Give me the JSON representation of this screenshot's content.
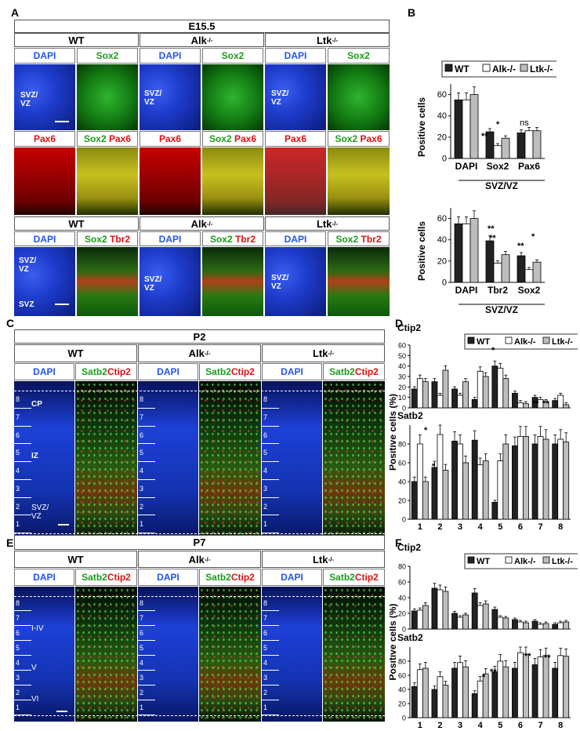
{
  "panel_letters": {
    "a": "A",
    "b": "B",
    "c": "C",
    "d": "D",
    "e": "E",
    "f": "F"
  },
  "panelA": {
    "stage": "E15.5",
    "genotypes": [
      "WT",
      "Alk",
      "Ltk"
    ],
    "ko_sup": "-/-",
    "row1": {
      "left": "DAPI",
      "right": "Sox2"
    },
    "row2": {
      "left": "Pax6",
      "right_a": "Sox2",
      "right_b": "Pax6"
    },
    "row3": {
      "left": "DAPI",
      "right_a": "Sox2",
      "right_b": "Tbr2"
    },
    "zone1": "SVZ/\nVZ",
    "zone_svz": "SVZ"
  },
  "panelC": {
    "stage": "P2",
    "labels": {
      "left": "DAPI",
      "right_a": "Satb2",
      "right_b": "Ctip2"
    },
    "regions": [
      "CP",
      "IZ",
      "SVZ/\nVZ"
    ],
    "bins": [
      "8",
      "7",
      "6",
      "5",
      "4",
      "3",
      "2",
      "1"
    ]
  },
  "panelE": {
    "stage": "P7",
    "regions": [
      "I-IV",
      "V",
      "VI"
    ]
  },
  "colors": {
    "wt": "#222222",
    "alk": "#ffffff",
    "ltk": "#bdbdbd",
    "dapi": "#2255ee",
    "green": "#1c9b1c",
    "red": "#dd1111"
  },
  "chart_data": [
    {
      "id": "B-top",
      "type": "bar",
      "ylabel": "Positive cells",
      "ylim": [
        0,
        70
      ],
      "yticks": [
        0,
        20,
        40,
        60
      ],
      "categories": [
        "DAPI",
        "Sox2",
        "Pax6"
      ],
      "group_label": "SVZ/VZ",
      "legend": [
        "WT",
        "Alk-/-",
        "Ltk-/-"
      ],
      "series": [
        {
          "name": "WT",
          "values": [
            55,
            25,
            24
          ]
        },
        {
          "name": "Alk-/-",
          "values": [
            55,
            12,
            26
          ]
        },
        {
          "name": "Ltk-/-",
          "values": [
            60,
            19,
            26
          ]
        }
      ],
      "annotations": [
        "**",
        "*",
        "ns"
      ]
    },
    {
      "id": "B-bottom",
      "type": "bar",
      "ylabel": "Positive cells",
      "ylim": [
        0,
        70
      ],
      "yticks": [
        0,
        20,
        40,
        60
      ],
      "categories": [
        "DAPI",
        "Tbr2",
        "Sox2"
      ],
      "group_label": "SVZ/VZ",
      "series": [
        {
          "name": "WT",
          "values": [
            55,
            39,
            25
          ]
        },
        {
          "name": "Alk-/-",
          "values": [
            55,
            18,
            12
          ]
        },
        {
          "name": "Ltk-/-",
          "values": [
            60,
            26,
            19
          ]
        }
      ],
      "annotations": [
        "**",
        "**",
        "**",
        "*"
      ]
    },
    {
      "id": "D",
      "type": "bar",
      "title_top": "Ctip2",
      "title_bottom": "Satb2",
      "ylabel": "Positive cells (%)",
      "categories": [
        "1",
        "2",
        "3",
        "4",
        "5",
        "6",
        "7",
        "8"
      ],
      "legend": [
        "WT",
        "Alk-/-",
        "Ltk-/-"
      ],
      "top": {
        "ylim": [
          0,
          60
        ],
        "yticks": [
          0,
          10,
          20,
          30,
          40,
          50,
          60
        ],
        "series": [
          {
            "name": "WT",
            "values": [
              18,
              25,
              18,
              8,
              40,
              14,
              10,
              7
            ]
          },
          {
            "name": "Alk-/-",
            "values": [
              28,
              12,
              12,
              35,
              38,
              5,
              8,
              12
            ]
          },
          {
            "name": "Ltk-/-",
            "values": [
              25,
              36,
              25,
              30,
              28,
              4,
              6,
              3
            ]
          }
        ]
      },
      "bottom": {
        "ylim": [
          0,
          100
        ],
        "yticks": [
          0,
          20,
          40,
          60,
          80
        ],
        "series": [
          {
            "name": "WT",
            "values": [
              40,
              55,
              83,
              84,
              18,
              78,
              80,
              80
            ]
          },
          {
            "name": "Alk-/-",
            "values": [
              80,
              90,
              80,
              58,
              62,
              88,
              88,
              85
            ]
          },
          {
            "name": "Ltk-/-",
            "values": [
              40,
              52,
              60,
              62,
              80,
              88,
              85,
              82
            ]
          }
        ]
      },
      "annotations": [
        "*",
        "**",
        "**",
        "*",
        "*"
      ]
    },
    {
      "id": "F",
      "type": "bar",
      "title_top": "Ctip2",
      "title_bottom": "Satb2",
      "ylabel": "Positive cells (%)",
      "categories": [
        "1",
        "2",
        "3",
        "4",
        "5",
        "6",
        "7",
        "8"
      ],
      "legend": [
        "WT",
        "Alk-/-",
        "Ltk-/-"
      ],
      "top": {
        "ylim": [
          0,
          80
        ],
        "yticks": [
          0,
          20,
          40,
          60,
          80
        ],
        "series": [
          {
            "name": "WT",
            "values": [
              23,
              52,
              20,
              46,
              25,
              12,
              10,
              6
            ]
          },
          {
            "name": "Alk-/-",
            "values": [
              24,
              50,
              15,
              30,
              15,
              9,
              6,
              8
            ]
          },
          {
            "name": "Ltk-/-",
            "values": [
              30,
              48,
              18,
              32,
              14,
              8,
              7,
              9
            ]
          }
        ]
      },
      "bottom": {
        "ylim": [
          0,
          100
        ],
        "yticks": [
          0,
          20,
          40,
          60,
          80
        ],
        "series": [
          {
            "name": "WT",
            "values": [
              44,
              40,
              70,
              34,
              65,
              70,
              75,
              70
            ]
          },
          {
            "name": "Alk-/-",
            "values": [
              68,
              58,
              78,
              52,
              80,
              92,
              86,
              88
            ]
          },
          {
            "name": "Ltk-/-",
            "values": [
              70,
              46,
              72,
              62,
              72,
              90,
              88,
              87
            ]
          }
        ]
      },
      "annotations": [
        "*",
        "**",
        "**",
        "**"
      ]
    }
  ]
}
